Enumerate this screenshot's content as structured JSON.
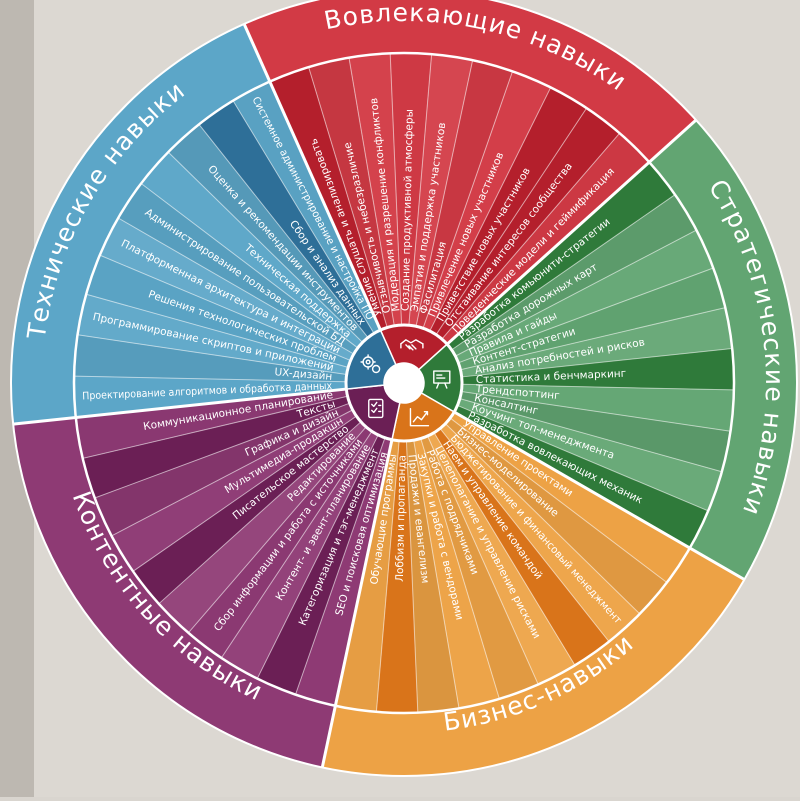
{
  "wheel": {
    "center_icons": [
      "handshake-icon",
      "strategy-board-icon",
      "growth-chart-icon",
      "checklist-icon",
      "gears-icon"
    ],
    "categories": [
      {
        "id": "engaging",
        "title": "Вовлекающие навыки",
        "color": "#d23a45",
        "dark": "#b41f2c",
        "skills": [
          "Умение слушать и анализировать",
          "Отзывчивость и небезразличие",
          "Модерация и разрешение конфликтов",
          "Создание продуктивной атмосферы",
          "Эмпатия и поддержка участников",
          "Фасилитация",
          "Привлечение новых участников",
          "Приветствие новых участников",
          "Отстаивание интересов сообщества",
          "Поведенческие модели и геймификация"
        ]
      },
      {
        "id": "strategic",
        "title": "Стратегические навыки",
        "color": "#62a572",
        "dark": "#2f7a3a",
        "skills": [
          "Разработка комьюнити-стратегии",
          "Разработка дорожных карт",
          "Правила и гайды",
          "Контент-стратегии",
          "Анализ потребностей и рисков",
          "Статистика и бенчмаркинг",
          "Трендспоттинг",
          "Консалтинг",
          "Коучинг топ-менеджмента",
          "Разработка вовлекающих механик"
        ]
      },
      {
        "id": "business",
        "title": "Бизнес-навыки",
        "color": "#eda245",
        "dark": "#d9741a",
        "skills": [
          "Управление проектами",
          "Бизнес-моделирование",
          "Бюджетирование и финансовый менеджмент",
          "Наем и управление командой",
          "Целеполагание и управление рисками",
          "Работа с подрядчиками",
          "Закупки и работа с вендорами",
          "Продажи и евангелизм",
          "Лоббизм и пропаганда",
          "Обучающие программы"
        ]
      },
      {
        "id": "content",
        "title": "Контентные навыки",
        "color": "#8e3a74",
        "dark": "#6b1f55",
        "skills": [
          "SEO и поисковая оптимизация",
          "Категоризация и тэг-менеджмент",
          "Контент- и эвент-планирование",
          "Сбор информации и работа с источниками",
          "Редактирование",
          "Писательское мастерство",
          "Мультимедиа-продакшн",
          "Графика и дизайн",
          "Тексты",
          "Коммуникационное планирование"
        ]
      },
      {
        "id": "technical",
        "title": "Технические навыки",
        "color": "#5ca6c8",
        "dark": "#2e6f98",
        "skills": [
          "Проектирование алгоритмов и обработка данных",
          "UX-дизайн",
          "Программирование скриптов и приложений",
          "Решения технологических проблем",
          "Платформенная архитектура и интеграции",
          "Администрирование пользовательской БД",
          "Техническая поддержка",
          "Оценка и рекомендации инструментов",
          "Сбор и анализ данных",
          "Системное администрирование и настройка ПО"
        ]
      }
    ]
  }
}
